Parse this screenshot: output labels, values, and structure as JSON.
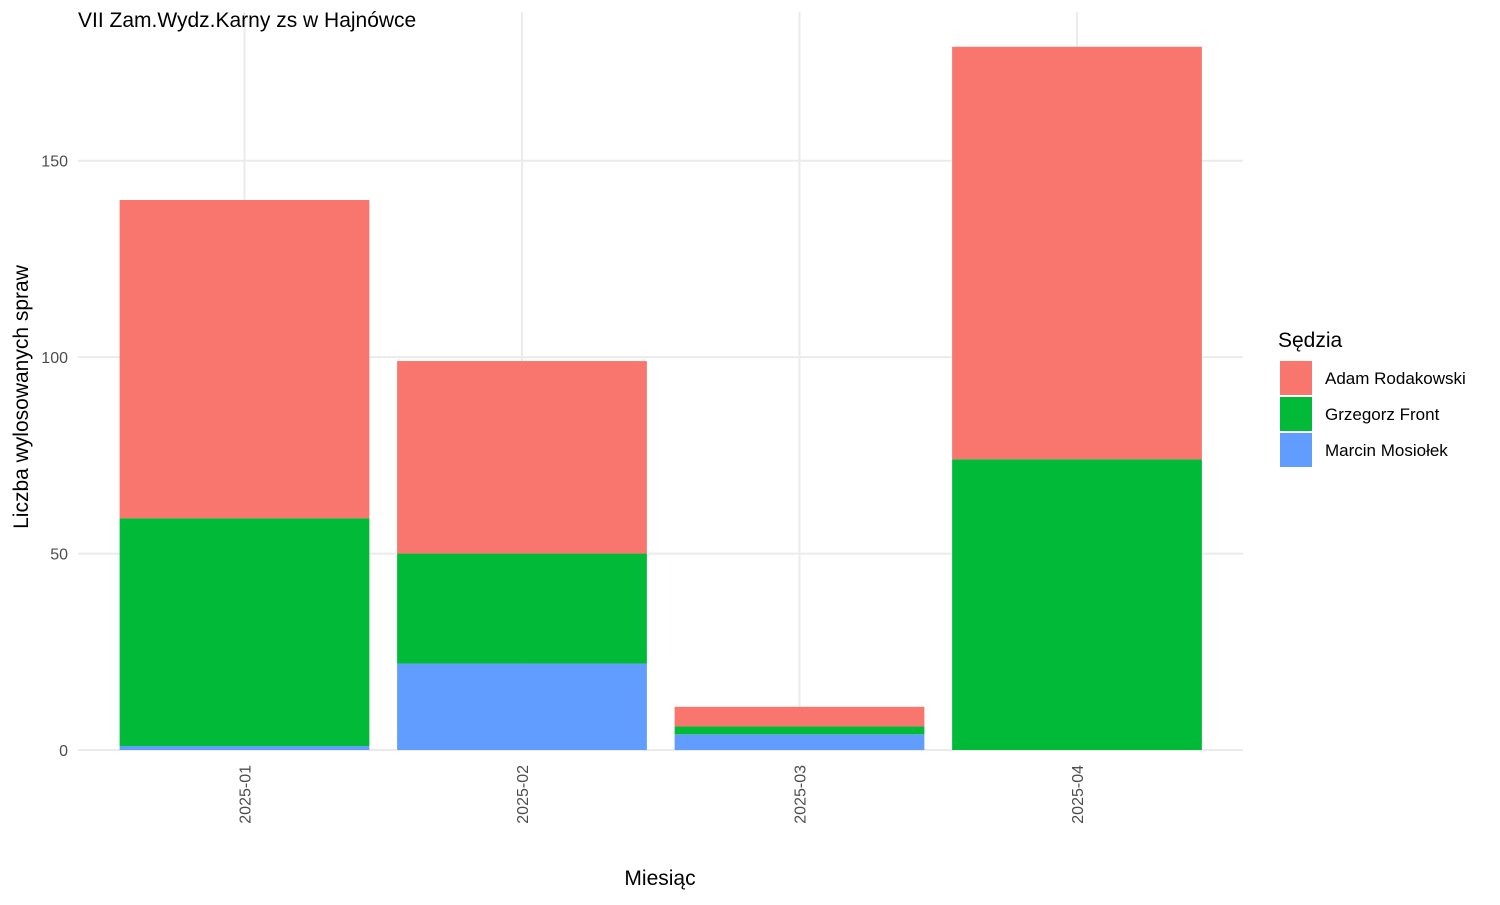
{
  "chart_data": {
    "type": "bar",
    "stacked": true,
    "title": "VII Zam.Wydz.Karny zs w Hajnówce",
    "xlabel": "Miesiąc",
    "ylabel": "Liczba wylosowanych spraw",
    "categories": [
      "2025-01",
      "2025-02",
      "2025-03",
      "2025-04"
    ],
    "series": [
      {
        "name": "Marcin Mosiołek",
        "color": "#619CFF",
        "values": [
          1,
          22,
          4,
          0
        ]
      },
      {
        "name": "Grzegorz Front",
        "color": "#00BA38",
        "values": [
          58,
          28,
          2,
          74
        ]
      },
      {
        "name": "Adam Rodakowski",
        "color": "#F8766D",
        "values": [
          81,
          49,
          5,
          105
        ]
      }
    ],
    "ylim": [
      0,
      179
    ],
    "yticks": [
      0,
      50,
      100,
      150
    ],
    "grid": true,
    "legend": {
      "title": "Sędzia",
      "position": "right",
      "order": [
        "Adam Rodakowski",
        "Grzegorz Front",
        "Marcin Mosiołek"
      ]
    }
  }
}
